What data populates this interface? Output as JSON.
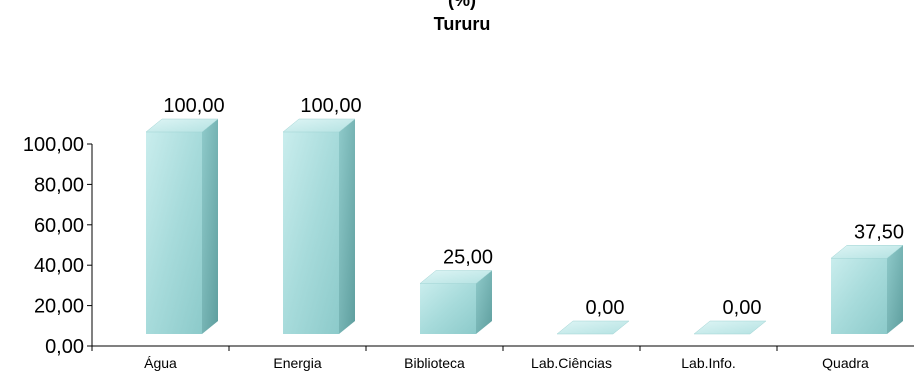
{
  "chart_data": {
    "type": "bar",
    "title_lines": [
      "(%)",
      "Tururu"
    ],
    "categories": [
      "Água",
      "Energia",
      "Biblioteca",
      "Lab.Ciências",
      "Lab.Info.",
      "Quadra"
    ],
    "values": [
      100,
      100,
      25,
      0,
      0,
      37.5
    ],
    "data_labels": [
      "100,00",
      "100,00",
      "25,00",
      "0,00",
      "0,00",
      "37,50"
    ],
    "y_ticks": [
      "0,00",
      "20,00",
      "40,00",
      "60,00",
      "80,00",
      "100,00"
    ],
    "ylim": [
      0,
      100
    ],
    "grid": false,
    "colors": {
      "front": "#a8dcdc",
      "side": "#6fb5b5",
      "top": "#c6ecec",
      "axis": "#000000"
    }
  }
}
